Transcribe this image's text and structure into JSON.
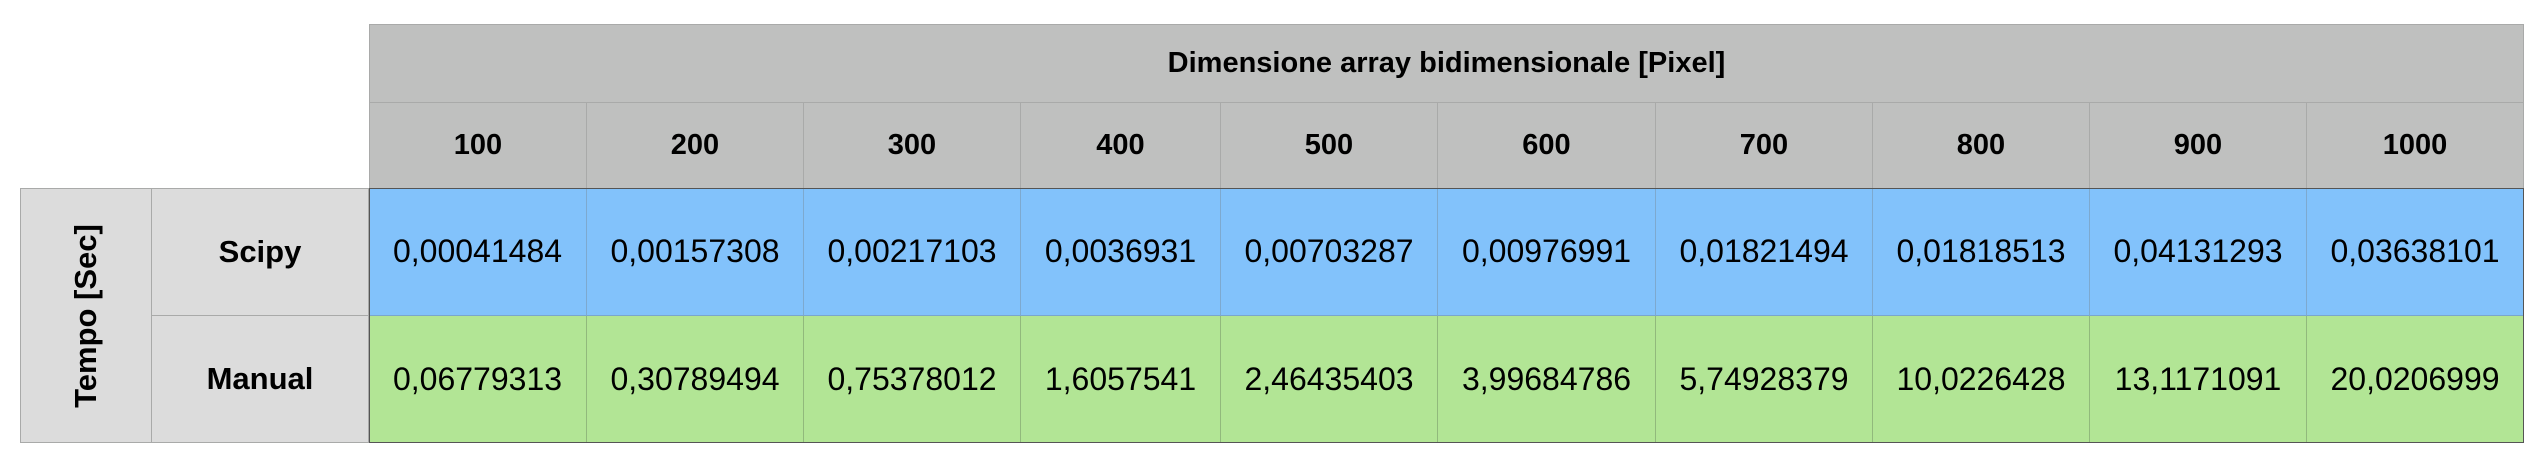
{
  "table": {
    "column_group_label": "Dimensione array bidimensionale [Pixel]",
    "row_group_label": "Tempo [Sec]",
    "columns": [
      "100",
      "200",
      "300",
      "400",
      "500",
      "600",
      "700",
      "800",
      "900",
      "1000"
    ],
    "rows": [
      {
        "label": "Scipy",
        "values": [
          "0,00041484",
          "0,00157308",
          "0,00217103",
          "0,0036931",
          "0,00703287",
          "0,00976991",
          "0,01821494",
          "0,01818513",
          "0,04131293",
          "0,03638101"
        ]
      },
      {
        "label": "Manual",
        "values": [
          "0,06779313",
          "0,30789494",
          "0,75378012",
          "1,6057541",
          "2,46435403",
          "3,99684786",
          "5,74928379",
          "10,0226428",
          "13,1171091",
          "20,0206999"
        ]
      }
    ]
  },
  "colors": {
    "header_bg": "#bfc0bf",
    "row_label_bg": "#dcdcdc",
    "scipy_bg": "#82c2fb",
    "manual_bg": "#b2e595"
  }
}
